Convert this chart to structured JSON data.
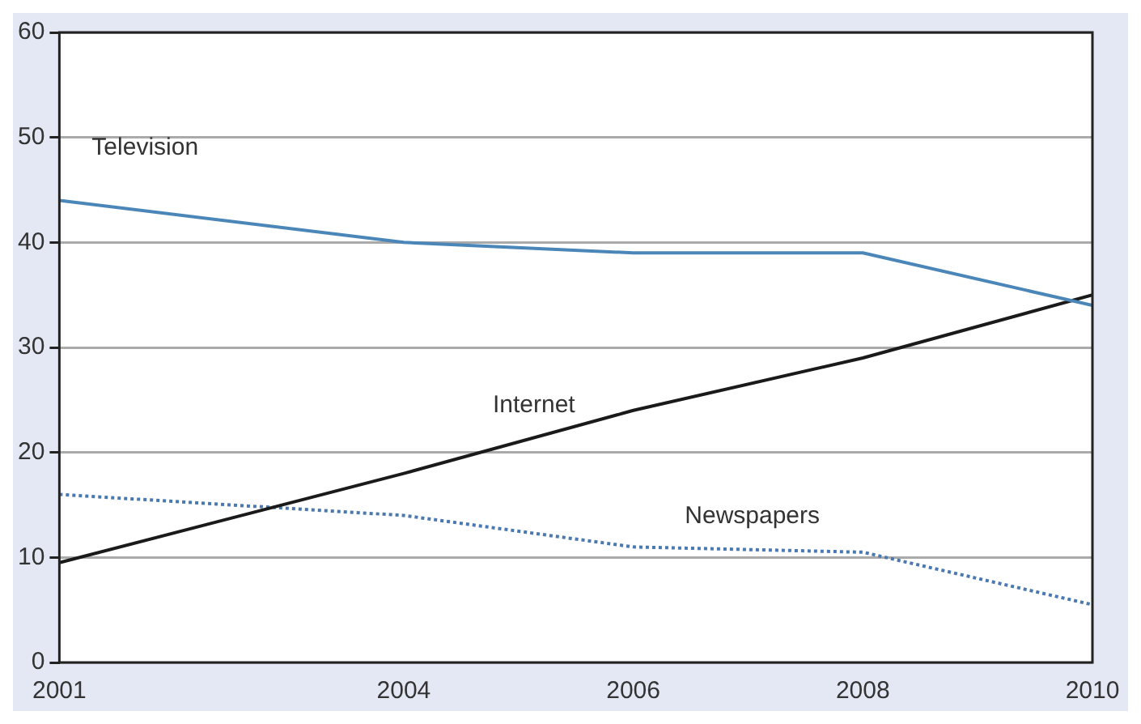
{
  "chart_data": {
    "type": "line",
    "x": [
      2001,
      2004,
      2006,
      2008,
      2010
    ],
    "series": [
      {
        "name": "Television",
        "color": "#4a86b8",
        "values": [
          44,
          40,
          39,
          39,
          34
        ]
      },
      {
        "name": "Internet",
        "color": "#1a1a1a",
        "values": [
          9.5,
          18,
          24,
          29,
          35
        ]
      },
      {
        "name": "Newspapers",
        "color": "#4a78b0",
        "values": [
          16,
          14,
          11,
          10.5,
          5.5
        ],
        "line_style": "dotted"
      }
    ],
    "xlim": [
      2001,
      2010
    ],
    "xticks": [
      2001,
      2004,
      2006,
      2008,
      2010
    ],
    "ylim": [
      0,
      60
    ],
    "yticks": [
      0,
      10,
      20,
      30,
      40,
      50,
      60
    ],
    "grid": "y",
    "legend": false,
    "marker": "none",
    "line_style": "solid"
  }
}
